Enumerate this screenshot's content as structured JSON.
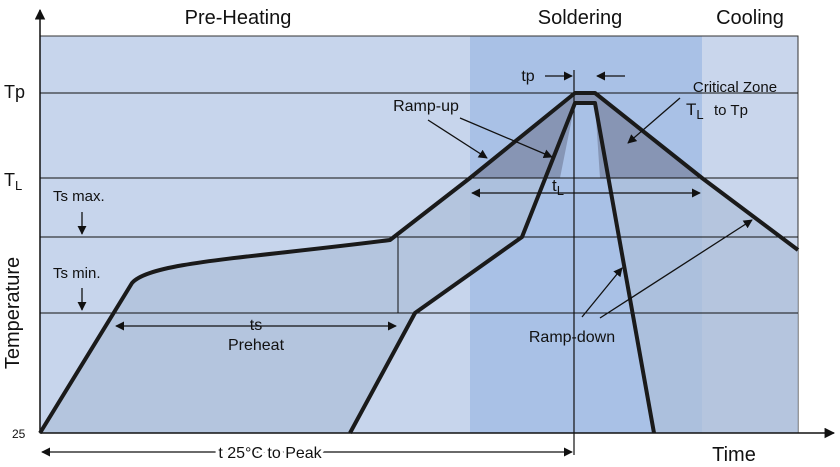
{
  "phases": {
    "preheat": "Pre-Heating",
    "soldering": "Soldering",
    "cooling": "Cooling"
  },
  "axes": {
    "y_label": "Temperature",
    "x_label": "Time",
    "origin": "25"
  },
  "levels": {
    "tp": "Tp",
    "tl": "T",
    "tl_sub": "L",
    "ts_max": "Ts max.",
    "ts_min": "Ts min."
  },
  "annotations": {
    "tp_interval": "tp",
    "ramp_up": "Ramp-up",
    "critical_zone": "Critical Zone",
    "critical_tl": "T",
    "critical_tl_sub": "L",
    "critical_to": "to Tp",
    "tl_interval": "t",
    "tl_interval_sub": "L",
    "ts": "ts",
    "preheat": "Preheat",
    "ramp_down": "Ramp-down",
    "t25_to_peak": "t 25°C to Peak"
  },
  "colors": {
    "bg_light": "#c7d5ec",
    "bg_soldering": "#a9c1e6",
    "bg_cooling": "#c9d6ec",
    "region_outer": "#aebfd9",
    "region_inner": "#97a8c6",
    "critical": "#7b87a6",
    "stroke": "#1a1a1a"
  }
}
